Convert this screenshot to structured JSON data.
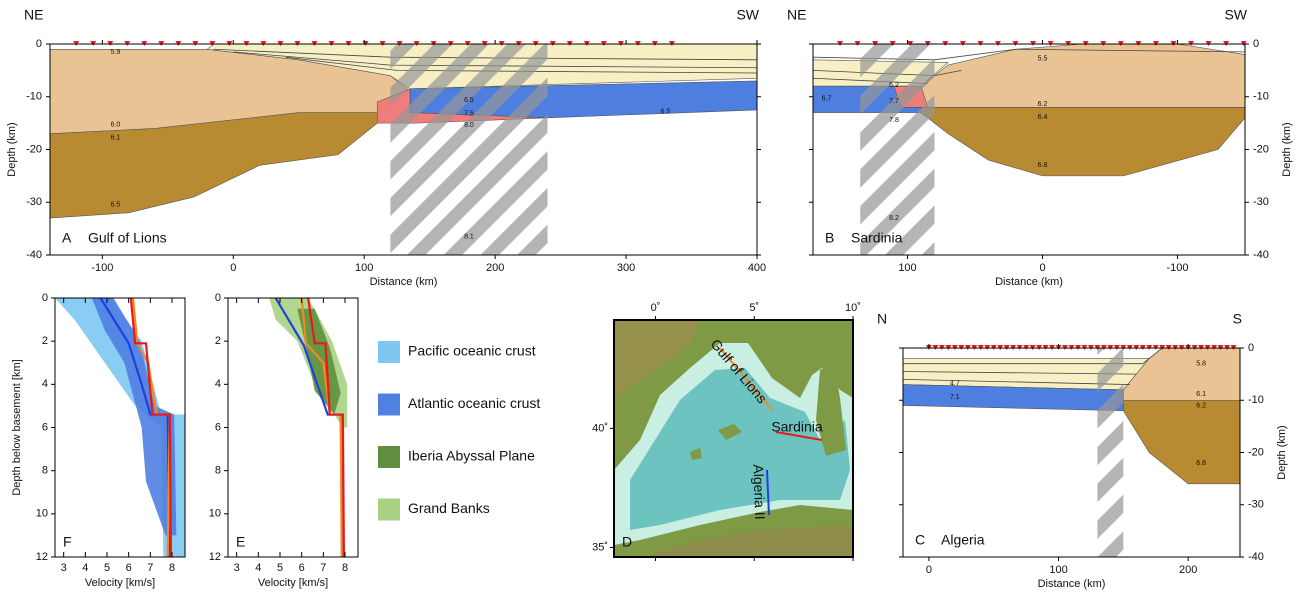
{
  "profiles": [
    {
      "label": "A",
      "name": "Gulf of Lions",
      "left": "NE",
      "right": "SW",
      "xlabel": "Distance (km)",
      "ylabel": "Depth (km)",
      "xlim": [
        -140,
        400
      ],
      "xticks": [
        -100,
        0,
        100,
        200,
        300,
        400
      ],
      "ylim": [
        0,
        -40
      ],
      "yticks": [
        0,
        -10,
        -20,
        -30,
        -40
      ],
      "annotations": [
        "5.9",
        "6.0",
        "6.1",
        "6.5",
        "6.5",
        "7.5",
        "8.0",
        "6.5",
        "8.1"
      ]
    },
    {
      "label": "B",
      "name": "Sardinia",
      "left": "NE",
      "right": "SW",
      "xlabel": "Distance (km)",
      "ylabel": "Depth (km)",
      "xlim": [
        170,
        -150
      ],
      "xticks": [
        100,
        0,
        -100
      ],
      "ylim": [
        0,
        -40
      ],
      "yticks": [
        0,
        -10,
        -20,
        -30,
        -40
      ],
      "annotations": [
        "5.5",
        "6.2",
        "6.7",
        "7.7",
        "7.8",
        "6.2",
        "6.4",
        "6.8",
        "8.2"
      ]
    },
    {
      "label": "C",
      "name": "Algeria",
      "left": "N",
      "right": "S",
      "xlabel": "Distance (km)",
      "ylabel": "Depth (km)",
      "xlim": [
        -20,
        240
      ],
      "xticks": [
        0,
        100,
        200
      ],
      "ylim": [
        0,
        -40
      ],
      "yticks": [
        0,
        -10,
        -20,
        -30,
        -40
      ],
      "annotations": [
        "5.8",
        "4.7",
        "7.1",
        "6.1",
        "6.2",
        "6.8"
      ]
    }
  ],
  "velocity_panels": [
    {
      "label": "F",
      "xlabel": "Velocity [km/s]",
      "ylabel": "Depth below basement [km]",
      "xlim": [
        2.6,
        8.6
      ],
      "xticks": [
        3,
        4,
        5,
        6,
        7,
        8
      ],
      "ylim": [
        0,
        12
      ],
      "yticks": [
        0,
        2,
        4,
        6,
        8,
        10,
        12
      ],
      "series": [
        {
          "color": "#1f3fe0",
          "x": [
            4.7,
            6.0,
            6.6,
            7.0,
            7.8,
            7.9
          ],
          "y": [
            0,
            2.1,
            4,
            5.4,
            5.4,
            12
          ]
        },
        {
          "color": "#f08a24",
          "x": [
            6.2,
            6.4,
            6.9,
            7.3,
            7.9,
            7.8
          ],
          "y": [
            0,
            2.1,
            3,
            5.4,
            5.4,
            12
          ]
        },
        {
          "color": "#e8191c",
          "x": [
            6.1,
            6.3,
            6.8,
            7.1,
            7.9,
            7.95
          ],
          "y": [
            0,
            2.1,
            2.1,
            5.4,
            5.4,
            12
          ]
        }
      ]
    },
    {
      "label": "E",
      "xlabel": "Velocity [km/s]",
      "xlim": [
        2.6,
        8.6
      ],
      "xticks": [
        3,
        4,
        5,
        6,
        7,
        8
      ],
      "ylim": [
        0,
        12
      ],
      "yticks": [
        0,
        2,
        4,
        6,
        8,
        10,
        12
      ],
      "series": [
        {
          "color": "#1f3fe0",
          "x": [
            4.8,
            6.1,
            7.2,
            7.8,
            7.9
          ],
          "y": [
            0,
            2.2,
            5.4,
            5.4,
            12
          ]
        },
        {
          "color": "#f08a24",
          "x": [
            6.0,
            6.2,
            7.0,
            7.3,
            7.8,
            7.85
          ],
          "y": [
            0,
            2.1,
            3,
            5.4,
            5.4,
            12
          ]
        },
        {
          "color": "#e8191c",
          "x": [
            6.3,
            6.6,
            7.1,
            7.3,
            7.9,
            7.95
          ],
          "y": [
            0,
            2.1,
            2.1,
            5.4,
            5.4,
            12
          ]
        }
      ]
    }
  ],
  "legend": [
    {
      "name": "Pacific oceanic crust",
      "color": "#7cc8f2"
    },
    {
      "name": "Atlantic oceanic crust",
      "color": "#4f80e2"
    },
    {
      "name": "Iberia Abyssal Plane",
      "color": "#5f8f3c"
    },
    {
      "name": "Grand Banks",
      "color": "#a9d184"
    }
  ],
  "map": {
    "label": "D",
    "lonlim": [
      -2.1,
      10
    ],
    "latlim": [
      34.6,
      44.55
    ],
    "lon_ticks": [
      {
        "value": 0,
        "label": "0˚"
      },
      {
        "value": 5,
        "label": "5˚"
      },
      {
        "value": 10,
        "label": "10˚"
      }
    ],
    "lat_ticks": [
      {
        "value": 40,
        "label": "40˚"
      },
      {
        "value": 35,
        "label": "35˚"
      }
    ],
    "lines": [
      {
        "name": "Gulf of Lions",
        "color": "#f08a24"
      },
      {
        "name": "Sardinia",
        "color": "#e8191c"
      },
      {
        "name": "Algeria II",
        "color": "#1f3fe0"
      }
    ]
  }
}
